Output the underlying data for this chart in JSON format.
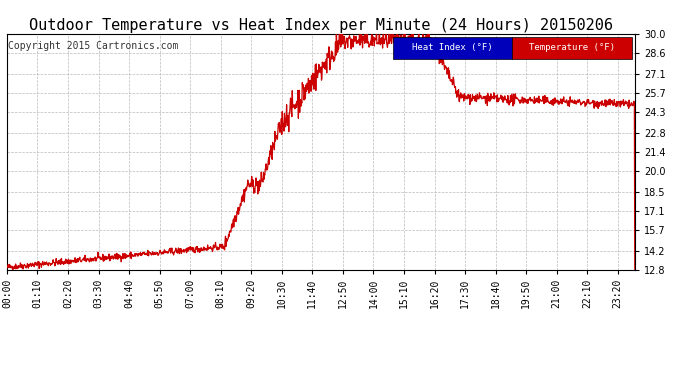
{
  "title": "Outdoor Temperature vs Heat Index per Minute (24 Hours) 20150206",
  "copyright": "Copyright 2015 Cartronics.com",
  "ylabel_right_ticks": [
    12.8,
    14.2,
    15.7,
    17.1,
    18.5,
    20.0,
    21.4,
    22.8,
    24.3,
    25.7,
    27.1,
    28.6,
    30.0
  ],
  "ymin": 12.8,
  "ymax": 30.0,
  "legend_items": [
    {
      "label": "Heat Index (°F)",
      "bg": "#0000bb",
      "fg": "#ffffff"
    },
    {
      "label": "Temperature (°F)",
      "bg": "#cc0000",
      "fg": "#ffffff"
    }
  ],
  "line_color": "#cc0000",
  "background_color": "#ffffff",
  "grid_color": "#aaaaaa",
  "title_fontsize": 11,
  "copyright_fontsize": 7,
  "tick_fontsize": 7,
  "x_tick_interval_minutes": 70
}
